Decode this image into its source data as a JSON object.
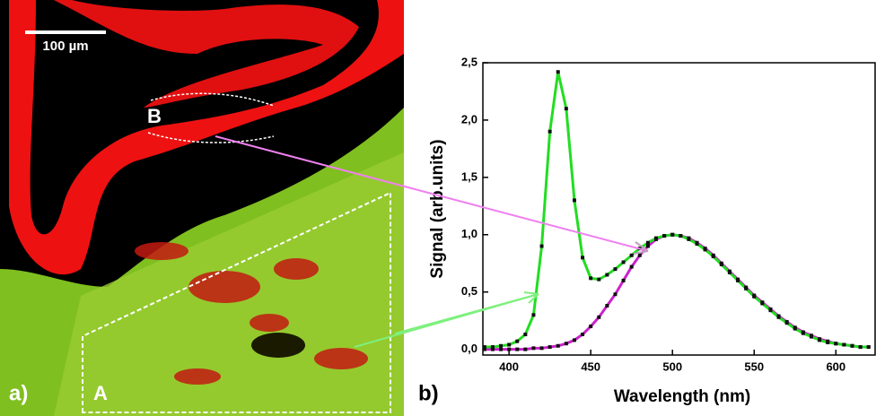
{
  "chart_data": {
    "type": "line",
    "panel_labels": [
      "a)",
      "b)"
    ],
    "image_labels": [
      "100 µm",
      "A",
      "B"
    ],
    "xlabel": "Wavelength (nm)",
    "ylabel": "Signal (arb.units)",
    "xlim": [
      384,
      624
    ],
    "ylim": [
      -0.05,
      2.5
    ],
    "xticks": [
      400,
      450,
      500,
      550,
      600
    ],
    "yticks": [
      {
        "value": 0,
        "label": "0,0"
      },
      {
        "value": 0.5,
        "label": "0,5"
      },
      {
        "value": 1,
        "label": "1,0"
      },
      {
        "value": 1.5,
        "label": "1,5"
      },
      {
        "value": 2,
        "label": "2,0"
      },
      {
        "value": 2.5,
        "label": "2,5"
      }
    ],
    "markers": true,
    "marker_color": "#111111",
    "x": [
      385,
      390,
      395,
      400,
      405,
      410,
      415,
      420,
      425,
      430,
      435,
      440,
      445,
      450,
      455,
      460,
      465,
      470,
      475,
      480,
      485,
      490,
      495,
      500,
      505,
      510,
      515,
      520,
      525,
      530,
      535,
      540,
      545,
      550,
      555,
      560,
      565,
      570,
      575,
      580,
      585,
      590,
      595,
      600,
      605,
      610,
      615,
      620
    ],
    "series": [
      {
        "color": "#cc22cc",
        "values": [
          0,
          0,
          0,
          0,
          0,
          0,
          0.01,
          0.01,
          0.02,
          0.03,
          0.05,
          0.08,
          0.13,
          0.2,
          0.28,
          0.38,
          0.48,
          0.6,
          0.72,
          0.82,
          0.9,
          0.96,
          0.99,
          1.0,
          0.99,
          0.97,
          0.93,
          0.88,
          0.82,
          0.75,
          0.68,
          0.61,
          0.54,
          0.47,
          0.41,
          0.35,
          0.29,
          0.24,
          0.19,
          0.15,
          0.12,
          0.09,
          0.07,
          0.05,
          0.04,
          0.03,
          0.02,
          0.02
        ]
      },
      {
        "color": "#22dd22",
        "values": [
          0.02,
          0.02,
          0.03,
          0.04,
          0.07,
          0.13,
          0.3,
          0.9,
          1.9,
          2.42,
          2.1,
          1.3,
          0.8,
          0.62,
          0.61,
          0.65,
          0.7,
          0.76,
          0.82,
          0.88,
          0.93,
          0.97,
          0.99,
          1.0,
          0.99,
          0.96,
          0.92,
          0.87,
          0.81,
          0.74,
          0.67,
          0.6,
          0.53,
          0.46,
          0.4,
          0.34,
          0.28,
          0.23,
          0.18,
          0.14,
          0.11,
          0.08,
          0.06,
          0.05,
          0.04,
          0.03,
          0.02,
          0.02
        ]
      }
    ]
  }
}
